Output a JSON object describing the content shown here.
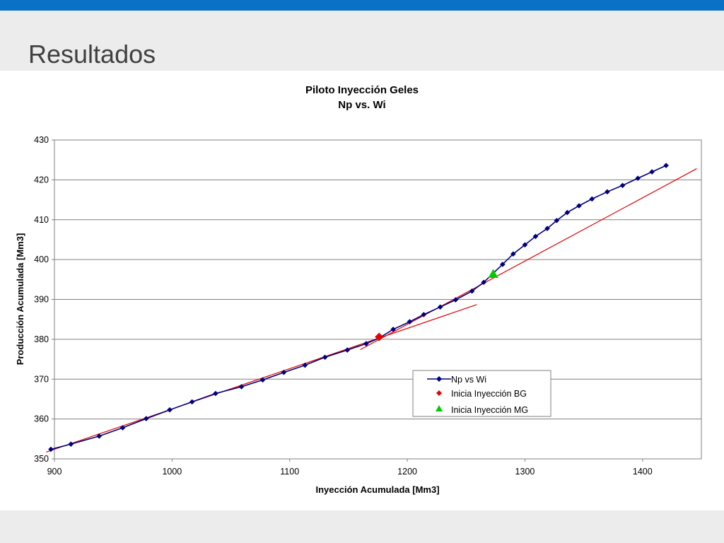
{
  "slide": {
    "title": "Resultados"
  },
  "colors": {
    "topbar": "#0a72c6",
    "series": "#000080",
    "bg_marker": "#e60000",
    "mg_marker": "#00cc00",
    "trend": "#e00000"
  },
  "chart_data": {
    "type": "scatter",
    "title": "Piloto Inyección Geles",
    "subtitle": "Np vs. Wi",
    "xlabel": "Inyección Acumulada [Mm3]",
    "ylabel": "Producción Acumulada [Mm3]",
    "xlim": [
      900,
      1450
    ],
    "ylim": [
      350,
      430
    ],
    "xticks": [
      900,
      1000,
      1100,
      1200,
      1300,
      1400
    ],
    "yticks": [
      350,
      360,
      370,
      380,
      390,
      400,
      410,
      420,
      430
    ],
    "grid": "horizontal",
    "legend_position": "bottom-right",
    "series": [
      {
        "name": "Np vs Wi",
        "style": "line-markers",
        "marker": "diamond",
        "color": "#000080",
        "points": [
          [
            897,
            352.4
          ],
          [
            914,
            353.7
          ],
          [
            938,
            355.7
          ],
          [
            958,
            357.8
          ],
          [
            978,
            360.1
          ],
          [
            998,
            362.3
          ],
          [
            1017,
            364.3
          ],
          [
            1037,
            366.4
          ],
          [
            1059,
            368.1
          ],
          [
            1077,
            369.8
          ],
          [
            1095,
            371.7
          ],
          [
            1113,
            373.5
          ],
          [
            1130,
            375.5
          ],
          [
            1149,
            377.3
          ],
          [
            1165,
            378.9
          ],
          [
            1176,
            380.3
          ],
          [
            1188,
            382.5
          ],
          [
            1202,
            384.4
          ],
          [
            1214,
            386.2
          ],
          [
            1228,
            388.1
          ],
          [
            1241,
            389.9
          ],
          [
            1255,
            392.1
          ],
          [
            1265,
            394.3
          ],
          [
            1281,
            398.8
          ],
          [
            1290,
            401.4
          ],
          [
            1300,
            403.7
          ],
          [
            1309,
            405.8
          ],
          [
            1319,
            407.8
          ],
          [
            1327,
            409.8
          ],
          [
            1336,
            411.8
          ],
          [
            1346,
            413.5
          ],
          [
            1357,
            415.2
          ],
          [
            1370,
            417.0
          ],
          [
            1383,
            418.6
          ],
          [
            1396,
            420.4
          ],
          [
            1408,
            422.0
          ],
          [
            1420,
            423.6
          ]
        ]
      },
      {
        "name": "Inicia Inyección BG",
        "style": "markers",
        "marker": "diamond",
        "color": "#e60000",
        "points": [
          [
            1176,
            380.6
          ]
        ]
      },
      {
        "name": "Inicia Inyección MG",
        "style": "markers",
        "marker": "triangle",
        "color": "#00cc00",
        "points": [
          [
            1273,
            396.4
          ]
        ]
      }
    ],
    "trendlines": [
      {
        "color": "#e00000",
        "points": [
          [
            893,
            351.7
          ],
          [
            1259,
            388.7
          ]
        ]
      },
      {
        "color": "#e00000",
        "points": [
          [
            1160,
            377.4
          ],
          [
            1446,
            422.8
          ]
        ]
      }
    ]
  }
}
